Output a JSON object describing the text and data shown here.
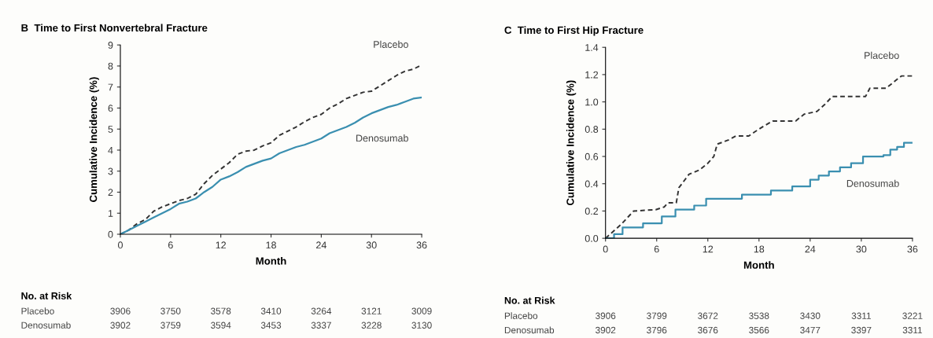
{
  "chart_data": [
    {
      "type": "line",
      "title": "B  Time to First Nonvertebral Fracture",
      "xlabel": "Month",
      "ylabel": "Cumulative Incidence (%)",
      "xlim": [
        0,
        36
      ],
      "xticks": [
        0,
        6,
        12,
        18,
        24,
        30,
        36
      ],
      "ylim": [
        0,
        9
      ],
      "yticks": [
        0,
        1,
        2,
        3,
        4,
        5,
        6,
        7,
        8,
        9
      ],
      "grid": false,
      "legend": false,
      "series": [
        {
          "name": "Placebo",
          "color": "#333333",
          "line_style": "dashed",
          "x": [
            0,
            1,
            2,
            3,
            4,
            5,
            6,
            7,
            8,
            9,
            10,
            11,
            12,
            13,
            14,
            15,
            16,
            17,
            18,
            19,
            20,
            21,
            22,
            23,
            24,
            25,
            26,
            27,
            28,
            29,
            30,
            31,
            32,
            33,
            34,
            35,
            36
          ],
          "values": [
            0,
            0.2,
            0.5,
            0.7,
            1.1,
            1.3,
            1.45,
            1.6,
            1.7,
            1.9,
            2.4,
            2.8,
            3.1,
            3.4,
            3.8,
            3.95,
            4.0,
            4.2,
            4.35,
            4.7,
            4.9,
            5.1,
            5.35,
            5.55,
            5.7,
            6.0,
            6.2,
            6.45,
            6.6,
            6.75,
            6.8,
            7.05,
            7.3,
            7.55,
            7.75,
            7.85,
            8.05
          ]
        },
        {
          "name": "Denosumab",
          "color": "#3a8fb0",
          "line_style": "solid",
          "x": [
            0,
            1,
            2,
            3,
            4,
            5,
            6,
            7,
            8,
            9,
            10,
            11,
            12,
            13,
            14,
            15,
            16,
            17,
            18,
            19,
            20,
            21,
            22,
            23,
            24,
            25,
            26,
            27,
            28,
            29,
            30,
            31,
            32,
            33,
            34,
            35,
            36
          ],
          "values": [
            0,
            0.2,
            0.4,
            0.6,
            0.8,
            1.0,
            1.2,
            1.45,
            1.55,
            1.7,
            2.0,
            2.25,
            2.6,
            2.75,
            2.95,
            3.2,
            3.35,
            3.5,
            3.6,
            3.85,
            4.0,
            4.15,
            4.25,
            4.4,
            4.55,
            4.8,
            4.95,
            5.1,
            5.3,
            5.55,
            5.75,
            5.9,
            6.05,
            6.15,
            6.3,
            6.45,
            6.5
          ]
        }
      ],
      "annotations": [
        "No. at Risk",
        "Placebo",
        "3906",
        "3750",
        "3578",
        "3410",
        "3264",
        "3121",
        "3009",
        "Denosumab",
        "3902",
        "3759",
        "3594",
        "3453",
        "3337",
        "3228",
        "3130"
      ]
    },
    {
      "type": "line",
      "title": "C  Time to First Hip Fracture",
      "xlabel": "Month",
      "ylabel": "Cumulative Incidence (%)",
      "xlim": [
        0,
        36
      ],
      "xticks": [
        0,
        6,
        12,
        18,
        24,
        30,
        36
      ],
      "ylim": [
        0,
        1.4
      ],
      "yticks": [
        {
          "value": 0,
          "label": "0.0"
        },
        {
          "value": 0.2,
          "label": "0.2"
        },
        {
          "value": 0.4,
          "label": "0.4"
        },
        {
          "value": 0.6,
          "label": "0.6"
        },
        {
          "value": 0.8,
          "label": "0.8"
        },
        {
          "value": 1.0,
          "label": "1.0"
        },
        {
          "value": 1.2,
          "label": "1.2"
        },
        {
          "value": 1.4,
          "label": "1.4"
        }
      ],
      "grid": false,
      "legend": false,
      "series": [
        {
          "name": "Placebo",
          "color": "#333333",
          "line_style": "dashed",
          "x": [
            0,
            1.8,
            3.3,
            5.9,
            6.9,
            7.3,
            8.3,
            8.6,
            9.8,
            11,
            12,
            12.7,
            13.1,
            14.4,
            15.3,
            16.8,
            17.5,
            18.5,
            19.6,
            22.3,
            23.3,
            24.8,
            25.7,
            26.6,
            30.5,
            31,
            32.9,
            33.9,
            34.7,
            36
          ],
          "values": [
            0,
            0.1,
            0.2,
            0.21,
            0.23,
            0.26,
            0.26,
            0.37,
            0.47,
            0.5,
            0.55,
            0.6,
            0.69,
            0.72,
            0.75,
            0.75,
            0.78,
            0.82,
            0.86,
            0.86,
            0.91,
            0.93,
            0.98,
            1.04,
            1.04,
            1.1,
            1.1,
            1.15,
            1.19,
            1.19
          ]
        },
        {
          "name": "Denosumab",
          "type": "step",
          "color": "#3a8fb0",
          "line_style": "solid",
          "x": [
            0,
            1,
            2,
            4.4,
            6.6,
            8.2,
            10.4,
            11.8,
            16,
            19.4,
            21.9,
            24,
            25,
            26.2,
            27.5,
            28.8,
            30.2,
            32.6,
            33.4,
            34.2,
            35,
            36
          ],
          "values": [
            0,
            0.03,
            0.08,
            0.11,
            0.16,
            0.21,
            0.24,
            0.29,
            0.32,
            0.35,
            0.38,
            0.43,
            0.46,
            0.49,
            0.52,
            0.55,
            0.6,
            0.61,
            0.65,
            0.67,
            0.7,
            0.7
          ]
        }
      ],
      "annotations": [
        "No. at Risk",
        "Placebo",
        "3906",
        "3799",
        "3672",
        "3538",
        "3430",
        "3311",
        "3221",
        "Denosumab",
        "3902",
        "3796",
        "3676",
        "3566",
        "3477",
        "3397",
        "3311"
      ]
    }
  ]
}
